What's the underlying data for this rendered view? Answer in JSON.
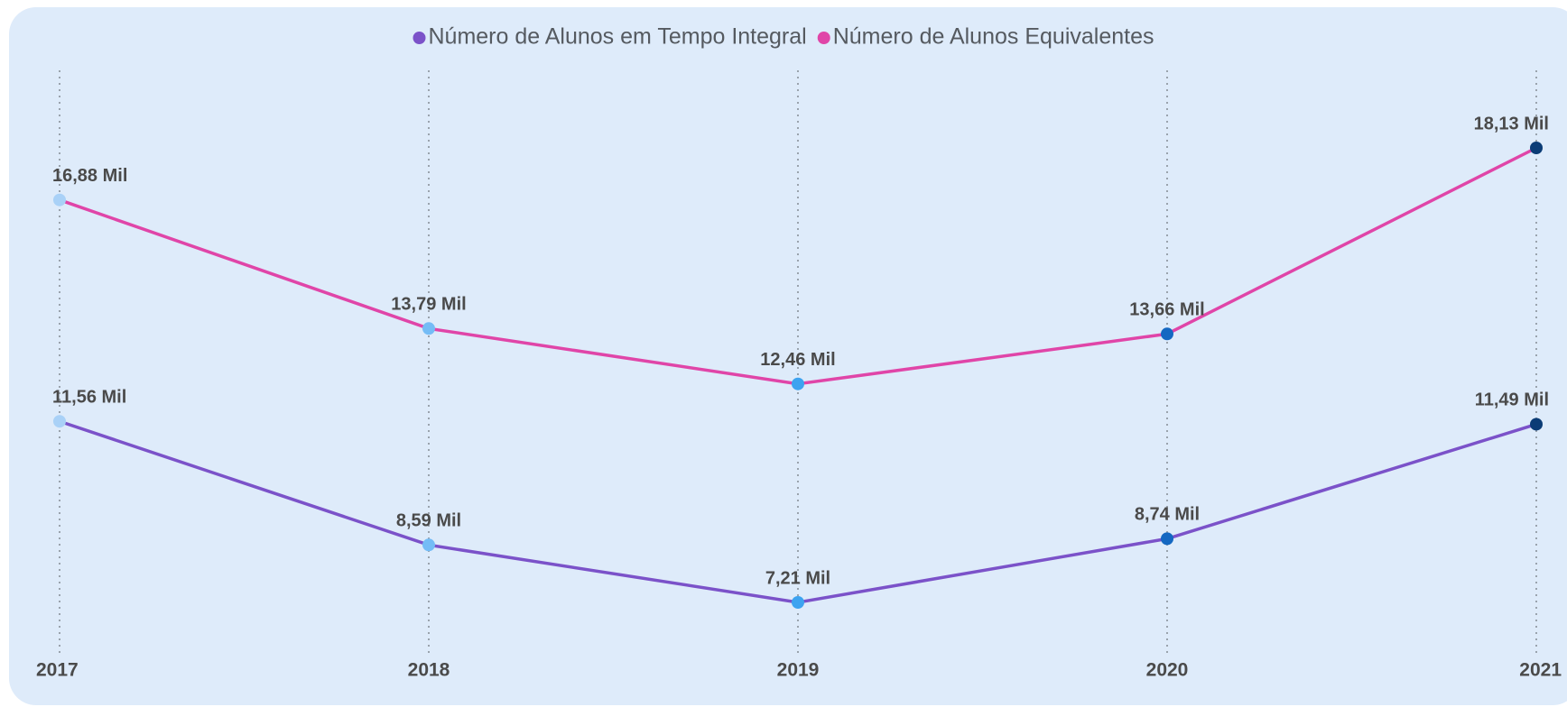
{
  "chart_data": {
    "type": "line",
    "categories": [
      "2017",
      "2018",
      "2019",
      "2020",
      "2021"
    ],
    "series": [
      {
        "name": "Número de Alunos em Tempo Integral",
        "color": "#7b52c9",
        "values": [
          11.56,
          8.59,
          7.21,
          8.74,
          11.49
        ],
        "value_labels": [
          "11,56 Mil",
          "8,59 Mil",
          "7,21 Mil",
          "8,74 Mil",
          "11,49 Mil"
        ]
      },
      {
        "name": "Número de Alunos Equivalentes",
        "color": "#e045a8",
        "values": [
          16.88,
          13.79,
          12.46,
          13.66,
          18.13
        ],
        "value_labels": [
          "16,88 Mil",
          "13,79 Mil",
          "12,46 Mil",
          "13,66 Mil",
          "18,13 Mil"
        ]
      }
    ],
    "marker_colors": [
      "#a9d1f7",
      "#74bcf6",
      "#3da3f0",
      "#1468c2",
      "#0b3c76"
    ],
    "grid": true
  }
}
